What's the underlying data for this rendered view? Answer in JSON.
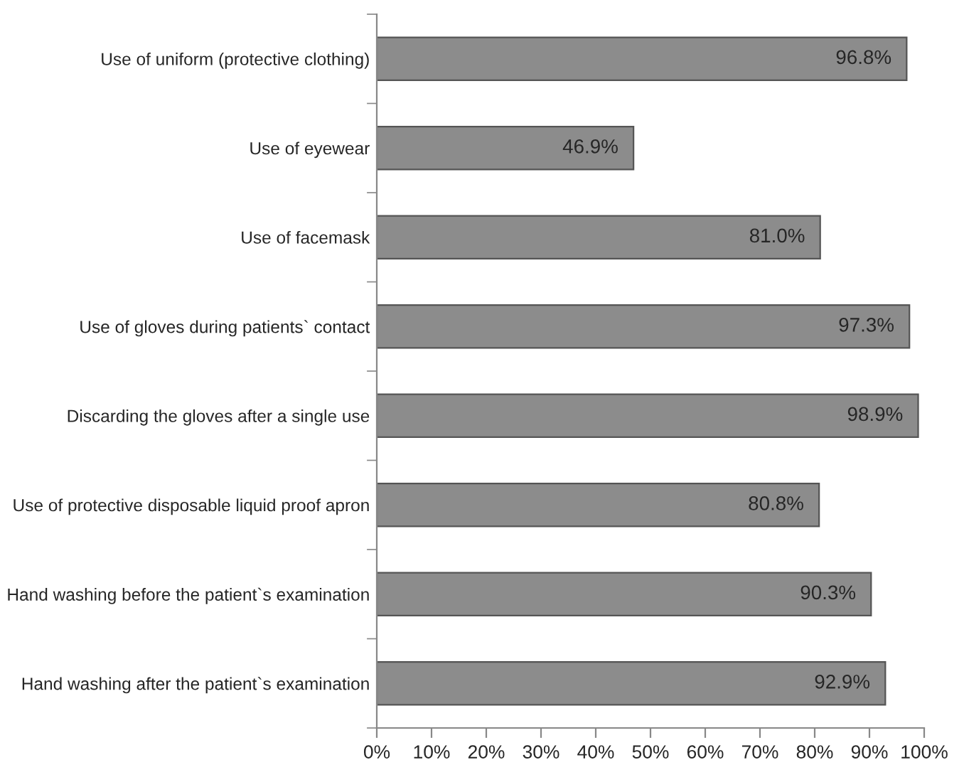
{
  "chart_data": {
    "type": "bar",
    "orientation": "horizontal",
    "categories": [
      "Use of uniform (protective clothing)",
      "Use of eyewear",
      "Use of facemask",
      "Use of gloves during patients` contact",
      "Discarding the gloves after a single use",
      "Use of protective disposable liquid proof apron",
      "Hand washing before the patient`s examination",
      "Hand washing after the patient`s examination"
    ],
    "values": [
      96.8,
      46.9,
      81.0,
      97.3,
      98.9,
      80.8,
      90.3,
      92.9
    ],
    "value_labels": [
      "96.8%",
      "46.9%",
      "81.0%",
      "97.3%",
      "98.9%",
      "80.8%",
      "90.3%",
      "92.9%"
    ],
    "color": "#8c8c8c",
    "xlim": [
      0,
      100
    ],
    "xticks": [
      {
        "value": 0,
        "label": "0%"
      },
      {
        "value": 10,
        "label": "10%"
      },
      {
        "value": 20,
        "label": "20%"
      },
      {
        "value": 30,
        "label": "30%"
      },
      {
        "value": 40,
        "label": "40%"
      },
      {
        "value": 50,
        "label": "50%"
      },
      {
        "value": 60,
        "label": "60%"
      },
      {
        "value": 70,
        "label": "70%"
      },
      {
        "value": 80,
        "label": "80%"
      },
      {
        "value": 90,
        "label": "90%"
      },
      {
        "value": 100,
        "label": "100%"
      }
    ],
    "grid": false,
    "legend": false
  }
}
